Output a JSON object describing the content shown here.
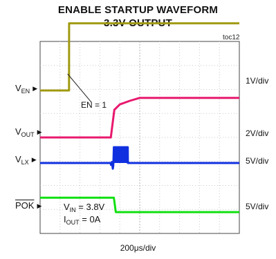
{
  "title_line1": "ENABLE STARTUP WAVEFORM",
  "title_line2": "3.3V OUTPUT",
  "figure_tag": "toc12",
  "x_scale_label": "200μs/div",
  "annotation": "EN = 1",
  "conditions": {
    "vin_sym": "V",
    "vin_sub": "IN",
    "vin_val": " = 3.8V",
    "iout_sym": "I",
    "iout_sub": "OUT",
    "iout_val": " = 0A"
  },
  "chart_data": {
    "type": "line",
    "title": "ENABLE STARTUP WAVEFORM 3.3V OUTPUT",
    "xlabel": "200μs/div",
    "x_unit": "μs",
    "x_per_div": 200,
    "divisions": 10,
    "series": [
      {
        "name": "VEN",
        "name_sym": "V",
        "name_sub": "EN",
        "scale": "1V/div",
        "color": "#a09a10",
        "x": [
          0,
          290,
          291,
          2000
        ],
        "values": [
          0,
          0,
          2.8,
          2.8
        ]
      },
      {
        "name": "VOUT",
        "name_sym": "V",
        "name_sub": "OUT",
        "scale": "2V/div",
        "color": "#e8196e",
        "x": [
          0,
          710,
          745,
          800,
          900,
          1000,
          2000
        ],
        "values": [
          0,
          0,
          2.3,
          2.75,
          3.05,
          3.3,
          3.3
        ]
      },
      {
        "name": "VLX",
        "name_sym": "V",
        "name_sub": "LX",
        "scale": "5V/div",
        "color": "#1030e0",
        "x": [
          0,
          710,
          711,
          720,
          730,
          735,
          740,
          745,
          880,
          881,
          2000
        ],
        "values": [
          0,
          0,
          -0.4,
          0.2,
          -1.2,
          -0.5,
          3.3,
          3.3,
          3.3,
          0,
          0
        ]
      },
      {
        "name": "POK",
        "name_sym": "POK",
        "name_sub": "",
        "scale": "5V/div",
        "color": "#10e010",
        "x": [
          0,
          740,
          760,
          2000
        ],
        "values": [
          2.7,
          2.7,
          -0.3,
          -0.3
        ]
      }
    ]
  },
  "colors": {
    "grid": "#c8c8c8",
    "frame": "#444444"
  }
}
